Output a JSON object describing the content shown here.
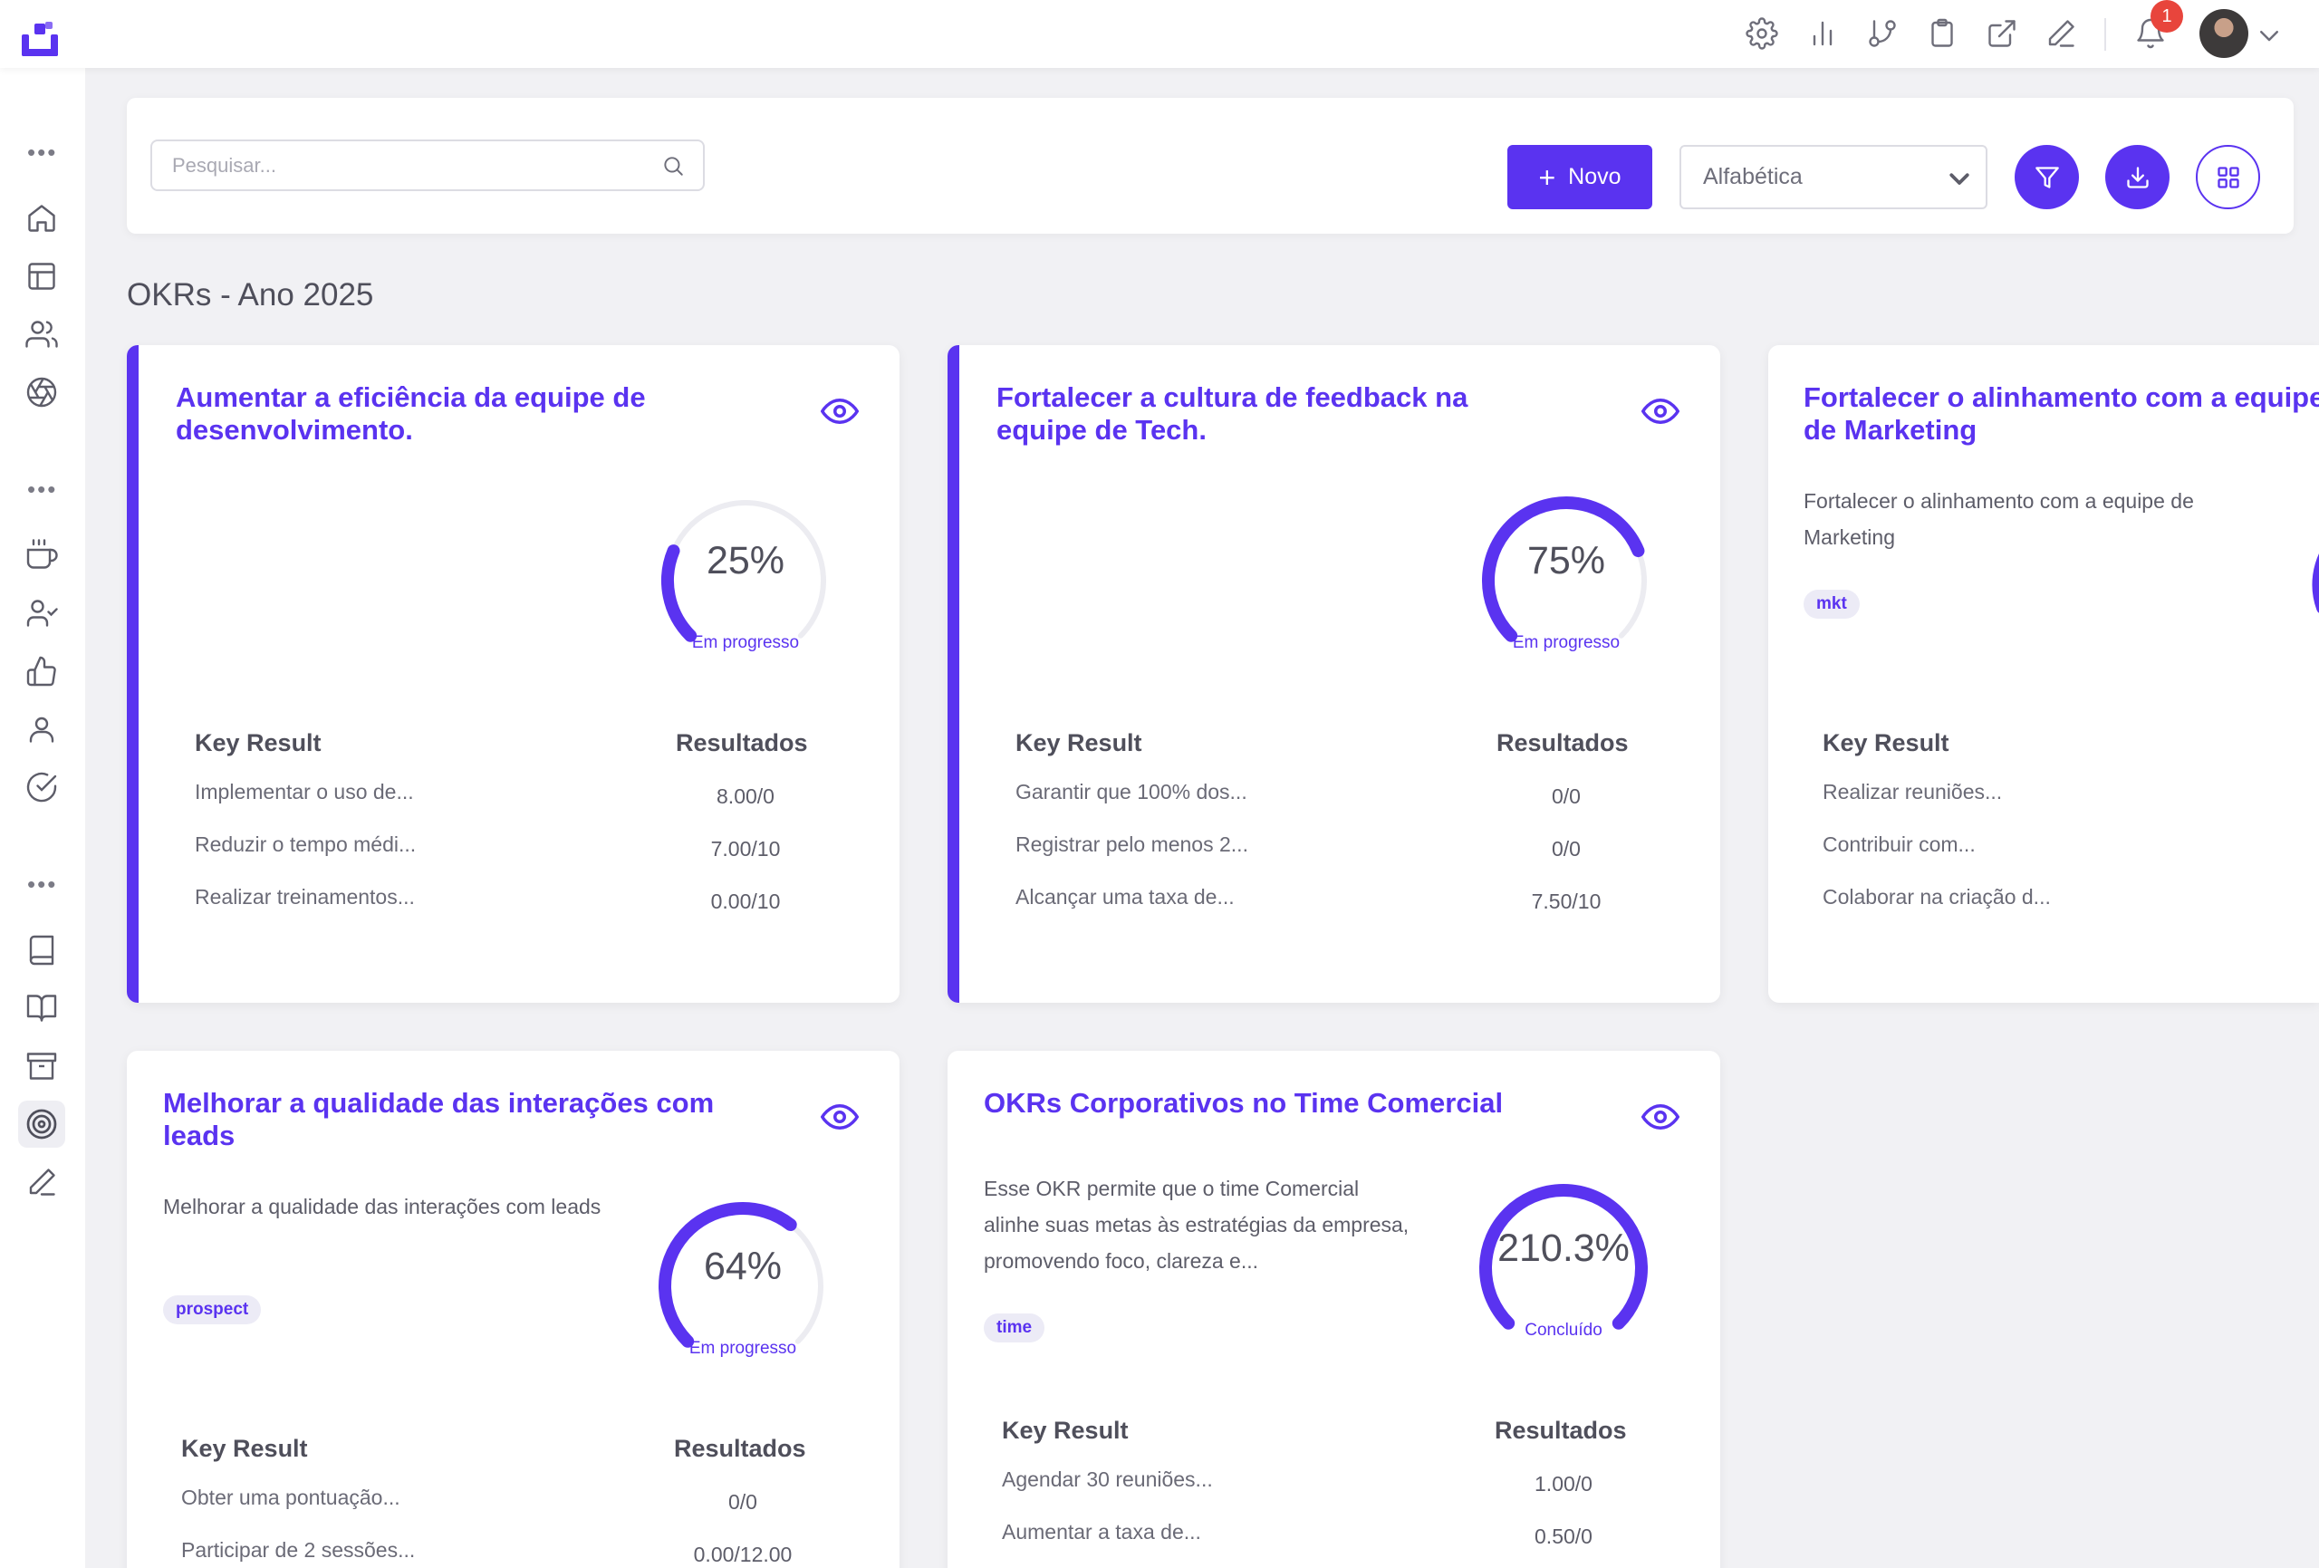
{
  "topbar": {
    "notification_count": "1",
    "icons": [
      "settings-icon",
      "chart-icon",
      "git-branch-icon",
      "clipboard-icon",
      "external-link-icon",
      "edit-icon",
      "bell-icon"
    ]
  },
  "sidebar": {
    "icons": [
      "home-icon",
      "layout-icon",
      "users-icon",
      "aperture-icon",
      "coffee-icon",
      "user-check-icon",
      "thumbs-up-icon",
      "user-icon",
      "check-circle-icon",
      "book-icon",
      "book-open-icon",
      "archive-icon",
      "target-icon",
      "pen-icon"
    ],
    "active": "target-icon"
  },
  "toolbar": {
    "search_placeholder": "Pesquisar...",
    "new_label": "Novo",
    "sort_value": "Alfabética"
  },
  "section_title": "OKRs - Ano 2025",
  "colors": {
    "accent": "#5a33f0",
    "gauge_track": "#ececf1",
    "badge": "#e8453c"
  },
  "cards": [
    {
      "title": "Aumentar a eficiência da equipe de desenvolvimento.",
      "description": "",
      "tag": "",
      "progress_label": "25%",
      "progress": 0.25,
      "status": "Em progresso",
      "kr_header": "Key Result",
      "results_header": "Resultados",
      "key_results": [
        {
          "label": "Implementar o uso de...",
          "value": "8.00/0"
        },
        {
          "label": "Reduzir o tempo médi...",
          "value": "7.00/10"
        },
        {
          "label": "Realizar treinamentos...",
          "value": "0.00/10"
        }
      ]
    },
    {
      "title": "Fortalecer a cultura de feedback na equipe de Tech.",
      "description": "",
      "tag": "",
      "progress_label": "75%",
      "progress": 0.75,
      "status": "Em progresso",
      "kr_header": "Key Result",
      "results_header": "Resultados",
      "key_results": [
        {
          "label": "Garantir que 100% dos...",
          "value": "0/0"
        },
        {
          "label": "Registrar pelo menos 2...",
          "value": "0/0"
        },
        {
          "label": "Alcançar uma taxa de...",
          "value": "7.50/10"
        }
      ]
    },
    {
      "title": "Fortalecer o alinhamento com a equipe de Marketing",
      "description": "Fortalecer o alinhamento com a equipe de Marketing",
      "tag": "mkt",
      "kr_header": "Key Result",
      "results_header": "Resultados",
      "key_results": [
        {
          "label": "Realizar reuniões...",
          "value": ""
        },
        {
          "label": "Contribuir com...",
          "value": ""
        },
        {
          "label": "Colaborar na criação d...",
          "value": ""
        }
      ]
    },
    {
      "title": "Melhorar a qualidade das interações com leads",
      "description": "Melhorar a qualidade das interações com leads",
      "tag": "prospect",
      "progress_label": "64%",
      "progress": 0.64,
      "status": "Em progresso",
      "kr_header": "Key Result",
      "results_header": "Resultados",
      "key_results": [
        {
          "label": "Obter uma pontuação...",
          "value": "0/0"
        },
        {
          "label": "Participar de 2 sessões...",
          "value": "0.00/12.00"
        }
      ]
    },
    {
      "title": "OKRs Corporativos no Time Comercial",
      "description": "Esse OKR permite que o time Comercial alinhe suas metas às estratégias da empresa, promovendo foco, clareza e...",
      "tag": "time",
      "progress_label": "210.3%",
      "progress": 1.0,
      "status": "Concluído",
      "kr_header": "Key Result",
      "results_header": "Resultados",
      "key_results": [
        {
          "label": "Agendar 30 reuniões...",
          "value": "1.00/0"
        },
        {
          "label": "Aumentar a taxa de...",
          "value": "0.50/0"
        }
      ]
    }
  ]
}
